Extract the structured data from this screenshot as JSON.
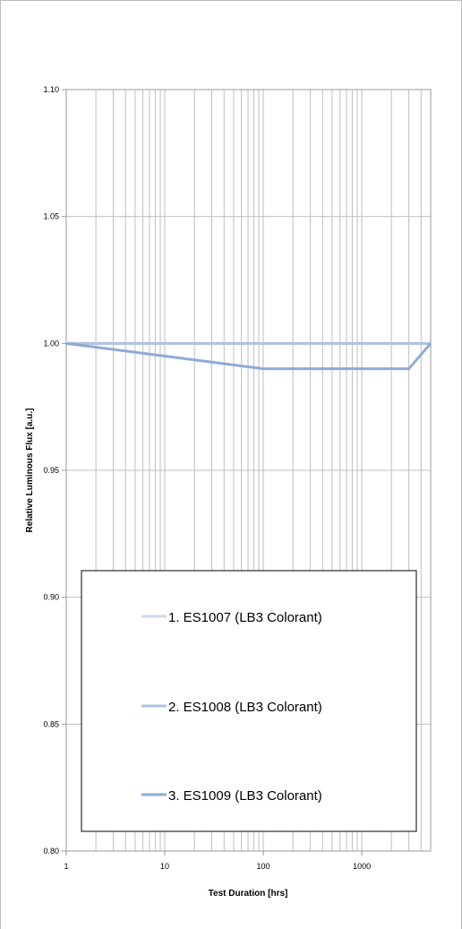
{
  "chart_data": {
    "type": "line",
    "xscale": "log",
    "xlim": [
      1,
      5000
    ],
    "ylim": [
      0.8,
      1.1
    ],
    "grid": true,
    "xlabel": "Test Duration [hrs]",
    "ylabel": "Relative Luminous Flux [a.u.]",
    "x_ticks": [
      1,
      10,
      100,
      1000
    ],
    "x_tick_labels": [
      "1",
      "10",
      "100",
      "1000"
    ],
    "y_ticks": [
      0.8,
      0.85,
      0.9,
      0.95,
      1.0,
      1.05,
      1.1
    ],
    "y_tick_labels": [
      "0.80",
      "0.85",
      "0.90",
      "0.95",
      "1.00",
      "1.05",
      "1.10"
    ],
    "legend_position": "bottom-center",
    "series": [
      {
        "name": "1. ES1007 (LB3 Colorant)",
        "color": "#c9d9ec",
        "x": [
          1,
          100,
          3000,
          5000
        ],
        "y": [
          1.0,
          1.0,
          1.0,
          1.0
        ]
      },
      {
        "name": "2. ES1008 (LB3 Colorant)",
        "color": "#adc3df",
        "x": [
          1,
          100,
          3000,
          5000
        ],
        "y": [
          1.0,
          1.0,
          1.0,
          1.0
        ]
      },
      {
        "name": "3. ES1009 (LB3 Colorant)",
        "color": "#8eaad7",
        "x": [
          1,
          100,
          3000,
          5000
        ],
        "y": [
          1.0,
          0.99,
          0.99,
          1.0
        ]
      }
    ]
  }
}
